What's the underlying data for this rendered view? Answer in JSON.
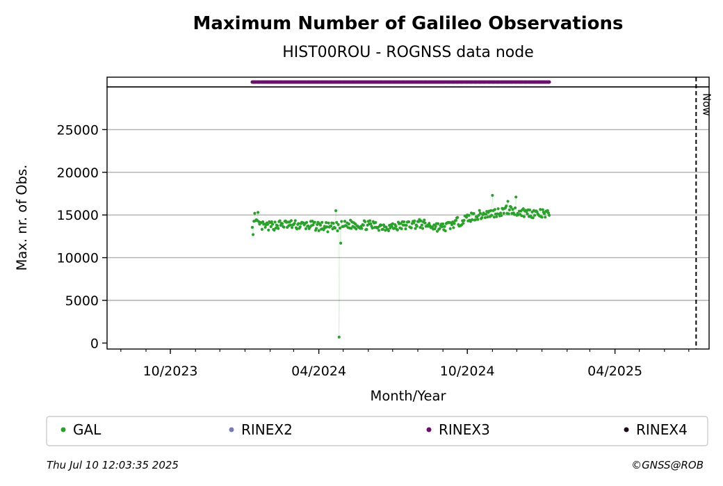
{
  "chart_data": {
    "type": "scatter",
    "title": "Maximum Number of Galileo Observations",
    "subtitle": "HIST00ROU - ROGNSS data node",
    "xlabel": "Month/Year",
    "ylabel": "Max. nr. of Obs.",
    "x_axis": {
      "type": "date",
      "range": [
        "2023-07-15",
        "2025-07-26"
      ],
      "major_ticks": [
        {
          "date": "2023-10-01",
          "label": "10/2023"
        },
        {
          "date": "2024-04-01",
          "label": "04/2024"
        },
        {
          "date": "2024-10-01",
          "label": "10/2024"
        },
        {
          "date": "2025-04-01",
          "label": "04/2025"
        }
      ]
    },
    "y_axis": {
      "range": [
        -700,
        30000
      ],
      "ticks": [
        0,
        5000,
        10000,
        15000,
        20000,
        25000
      ],
      "tick_labels": [
        "0",
        "5000",
        "10000",
        "15000",
        "20000",
        "25000"
      ],
      "grid": true
    },
    "now_marker": {
      "date": "2025-07-10",
      "label": "Now"
    },
    "rinex_strip": {
      "series": "RINEX3",
      "start": "2024-01-10",
      "end": "2025-01-10",
      "color": "#6a0f6a"
    },
    "gal_anchor_points": [
      [
        "2024-01-10",
        14100
      ],
      [
        "2024-01-25",
        13600
      ],
      [
        "2024-02-15",
        13900
      ],
      [
        "2024-03-10",
        13800
      ],
      [
        "2024-04-01",
        13700
      ],
      [
        "2024-04-15",
        13500
      ],
      [
        "2024-04-24",
        13600
      ],
      [
        "2024-05-10",
        13900
      ],
      [
        "2024-06-01",
        13800
      ],
      [
        "2024-07-01",
        13600
      ],
      [
        "2024-08-01",
        14000
      ],
      [
        "2024-09-01",
        13500
      ],
      [
        "2024-09-20",
        14200
      ],
      [
        "2024-10-10",
        14900
      ],
      [
        "2024-11-01",
        15200
      ],
      [
        "2024-11-20",
        15600
      ],
      [
        "2024-12-01",
        15400
      ],
      [
        "2025-01-10",
        15000
      ]
    ],
    "gal_special_points": [
      [
        "2024-01-11",
        12700
      ],
      [
        "2024-01-13",
        15200
      ],
      [
        "2024-01-17",
        15300
      ],
      [
        "2024-04-22",
        15500
      ],
      [
        "2024-04-26",
        700
      ],
      [
        "2024-04-28",
        11700
      ],
      [
        "2024-11-01",
        17300
      ],
      [
        "2024-11-20",
        16600
      ],
      [
        "2024-11-30",
        17100
      ]
    ],
    "gal_point_spread": 550,
    "gal_point_range": [
      "2024-01-10",
      "2025-01-10"
    ],
    "series": [
      {
        "name": "GAL",
        "color": "#2ca02c"
      },
      {
        "name": "RINEX2",
        "color": "#7a7ab5"
      },
      {
        "name": "RINEX3",
        "color": "#6a0f6a"
      },
      {
        "name": "RINEX4",
        "color": "#1e0a1e"
      }
    ],
    "legend_placement": "below"
  },
  "footer": {
    "timestamp": "Thu Jul 10 12:03:35 2025",
    "credit": "©GNSS@ROB"
  }
}
